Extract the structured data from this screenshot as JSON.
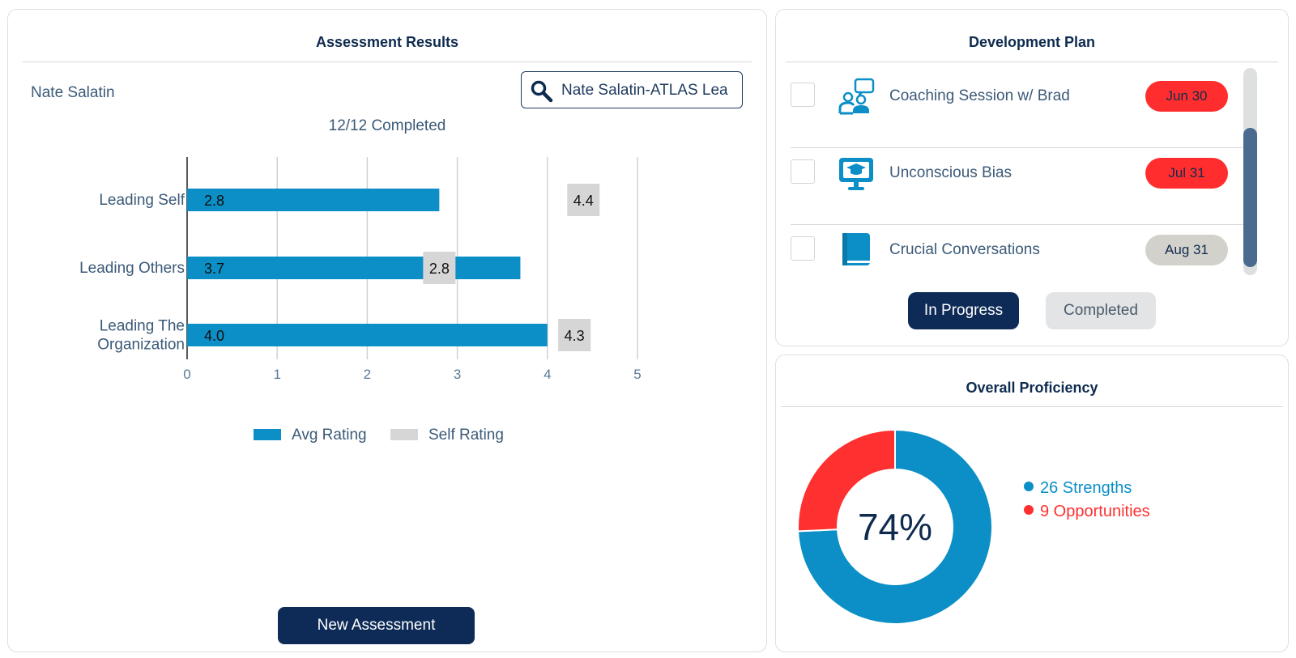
{
  "assessment": {
    "title": "Assessment Results",
    "person": "Nate Salatin",
    "search_value": "Nate Salatin-ATLAS Lea",
    "completed_text": "12/12 Completed",
    "new_button": "New Assessment"
  },
  "chart_data": {
    "type": "bar",
    "orientation": "horizontal",
    "categories": [
      "Leading Self",
      "Leading Others",
      "Leading The Organization"
    ],
    "category_lines": [
      [
        "Leading Self"
      ],
      [
        "Leading Others"
      ],
      [
        "Leading The",
        "Organization"
      ]
    ],
    "series": [
      {
        "name": "Avg Rating",
        "values": [
          2.8,
          3.7,
          4.0
        ],
        "color": "#0b8fc6"
      },
      {
        "name": "Self Rating",
        "values": [
          4.4,
          2.8,
          4.3
        ],
        "color": "#d6d6d6"
      }
    ],
    "xlim": [
      0,
      5
    ],
    "xticks": [
      "0",
      "1",
      "2",
      "3",
      "4",
      "5"
    ],
    "grid": "vertical",
    "legend": "bottom"
  },
  "devplan": {
    "title": "Development Plan",
    "items": [
      {
        "label": "Coaching Session w/ Brad",
        "due": "Jun 30",
        "icon": "coaching-icon",
        "badge_color": "#ff2d2d"
      },
      {
        "label": "Unconscious Bias",
        "due": "Jul 31",
        "icon": "monitor-course-icon",
        "badge_color": "#ff2d2d"
      },
      {
        "label": "Crucial Conversations",
        "due": "Aug 31",
        "icon": "book-icon",
        "badge_color": "#d3d1cb"
      }
    ],
    "tabs": {
      "in_progress": "In Progress",
      "completed": "Completed"
    }
  },
  "proficiency": {
    "title": "Overall Proficiency",
    "percent_label": "74%",
    "strengths_count": 26,
    "opportunities_count": 9,
    "strengths_label": "26 Strengths",
    "opportunities_label": "9 Opportunities",
    "strength_color": "#0b8fc6",
    "opportunity_color": "#ff3030"
  }
}
